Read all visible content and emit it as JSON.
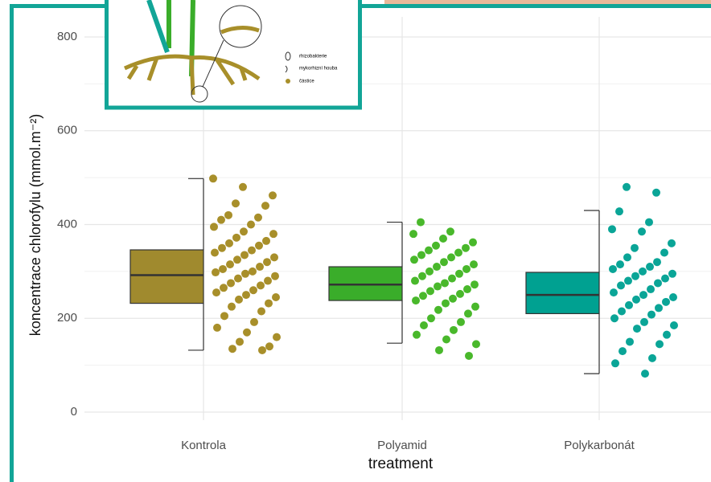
{
  "chart_data": {
    "type": "box-jitter",
    "y_label": "koncentrace chlorofylu (mmol.m⁻²)",
    "x_label": "treatment",
    "categories": [
      "Kontrola",
      "Polyamid",
      "Polykarbonát"
    ],
    "ylim": [
      0,
      800
    ],
    "yticks": [
      0,
      200,
      400,
      600,
      800
    ],
    "minor_yticks": [
      100,
      300,
      500,
      700
    ],
    "grid": true,
    "series": [
      {
        "color": "#a08a2e",
        "point_color": "#a88f2a",
        "q1": 232,
        "median": 292,
        "q3": 346,
        "whisker_low": 132,
        "whisker_high": 498,
        "values": [
          498,
          480,
          462,
          445,
          440,
          420,
          415,
          410,
          400,
          395,
          385,
          380,
          372,
          365,
          360,
          355,
          350,
          345,
          340,
          335,
          330,
          325,
          320,
          315,
          310,
          305,
          300,
          298,
          295,
          290,
          285,
          280,
          275,
          270,
          265,
          260,
          255,
          250,
          245,
          240,
          232,
          225,
          215,
          205,
          192,
          180,
          170,
          160,
          150,
          140,
          135,
          132
        ]
      },
      {
        "color": "#3aad2a",
        "point_color": "#49b82b",
        "q1": 238,
        "median": 272,
        "q3": 310,
        "whisker_low": 147,
        "whisker_high": 405,
        "values": [
          405,
          385,
          380,
          370,
          362,
          355,
          350,
          345,
          340,
          335,
          330,
          325,
          320,
          315,
          310,
          305,
          300,
          295,
          290,
          285,
          280,
          275,
          272,
          268,
          262,
          258,
          252,
          248,
          242,
          238,
          232,
          225,
          218,
          210,
          200,
          192,
          185,
          175,
          165,
          155,
          145,
          132,
          120
        ]
      },
      {
        "color": "#00a191",
        "point_color": "#0aa597",
        "q1": 210,
        "median": 250,
        "q3": 298,
        "whisker_low": 82,
        "whisker_high": 430,
        "values": [
          480,
          468,
          428,
          405,
          390,
          385,
          360,
          350,
          340,
          330,
          320,
          315,
          310,
          305,
          300,
          295,
          290,
          285,
          280,
          275,
          270,
          262,
          255,
          250,
          245,
          240,
          235,
          228,
          222,
          215,
          208,
          200,
          192,
          185,
          178,
          165,
          150,
          145,
          130,
          115,
          104,
          82
        ]
      }
    ]
  },
  "inset": {
    "labels": [
      "rhizobakterie",
      "mykorhizní houba",
      "částice"
    ]
  }
}
